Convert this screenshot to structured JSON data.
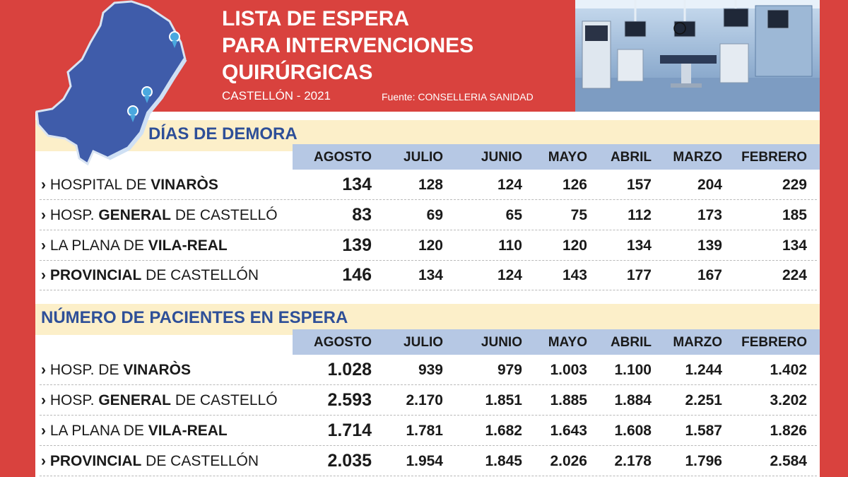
{
  "header": {
    "title_lines": [
      "LISTA DE ESPERA",
      "PARA INTERVENCIONES",
      "QUIRÚRGICAS"
    ],
    "subtitle": "CASTELLÓN - 2021",
    "source": "Fuente: CONSELLERIA SANIDAD"
  },
  "colors": {
    "background": "#d9423e",
    "section_band": "#fcefc9",
    "months_bar": "#b6c8e4",
    "section_title": "#2e4f98",
    "map_fill": "#3f5caa"
  },
  "chart_data": [
    {
      "type": "table",
      "title": "DÍAS DE DEMORA",
      "columns": [
        "AGOSTO",
        "JULIO",
        "JUNIO",
        "MAYO",
        "ABRIL",
        "MARZO",
        "FEBRERO"
      ],
      "rows": [
        {
          "label_parts": [
            "HOSPITAL DE ",
            "VINARÒS",
            ""
          ],
          "values": [
            "134",
            "128",
            "124",
            "126",
            "157",
            "204",
            "229"
          ]
        },
        {
          "label_parts": [
            "HOSP. ",
            "GENERAL",
            " DE CASTELLÓ"
          ],
          "values": [
            "83",
            "69",
            "65",
            "75",
            "112",
            "173",
            "185"
          ]
        },
        {
          "label_parts": [
            "LA PLANA DE ",
            "VILA-REAL",
            ""
          ],
          "values": [
            "139",
            "120",
            "110",
            "120",
            "134",
            "139",
            "134"
          ]
        },
        {
          "label_parts": [
            "",
            "PROVINCIAL",
            " DE CASTELLÓN"
          ],
          "values": [
            "146",
            "134",
            "124",
            "143",
            "177",
            "167",
            "224"
          ]
        }
      ]
    },
    {
      "type": "table",
      "title": "NÚMERO DE PACIENTES EN ESPERA",
      "columns": [
        "AGOSTO",
        "JULIO",
        "JUNIO",
        "MAYO",
        "ABRIL",
        "MARZO",
        "FEBRERO"
      ],
      "rows": [
        {
          "label_parts": [
            "HOSP. DE ",
            "VINARÒS",
            ""
          ],
          "values": [
            "1.028",
            "939",
            "979",
            "1.003",
            "1.100",
            "1.244",
            "1.402"
          ]
        },
        {
          "label_parts": [
            "HOSP. ",
            "GENERAL",
            " DE CASTELLÓ"
          ],
          "values": [
            "2.593",
            "2.170",
            "1.851",
            "1.885",
            "1.884",
            "2.251",
            "3.202"
          ]
        },
        {
          "label_parts": [
            "LA PLANA DE ",
            "VILA-REAL",
            ""
          ],
          "values": [
            "1.714",
            "1.781",
            "1.682",
            "1.643",
            "1.608",
            "1.587",
            "1.826"
          ]
        },
        {
          "label_parts": [
            "",
            "PROVINCIAL",
            " DE CASTELLÓN"
          ],
          "values": [
            "2.035",
            "1.954",
            "1.845",
            "2.026",
            "2.178",
            "1.796",
            "2.584"
          ]
        }
      ]
    }
  ],
  "icons": [
    "map-of-castellon-icon",
    "hospital-pin-icon",
    "operating-room-photo",
    "chevron-right-icon"
  ]
}
